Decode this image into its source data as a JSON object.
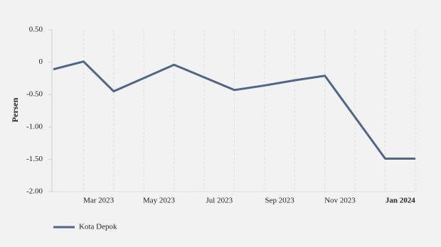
{
  "chart_data": {
    "type": "line",
    "y_label": "Persen",
    "categories": [
      null,
      "Mar 2023",
      null,
      "May 2023",
      null,
      "Jul 2023",
      null,
      "Sep 2023",
      null,
      "Nov 2023",
      null,
      "Jan 2024",
      null
    ],
    "series": [
      {
        "name": "Kota Depok",
        "color": "#4f6688",
        "values": [
          -0.11,
          0.01,
          -0.45,
          -0.245,
          -0.04,
          -0.235,
          -0.43,
          -0.36,
          -0.28,
          -0.21,
          -0.85,
          -1.49,
          -1.49
        ]
      }
    ],
    "ylim": [
      -2,
      0.5
    ],
    "yticks": [
      {
        "value": -2,
        "label": "-2.00"
      },
      {
        "value": -1.5,
        "label": "-1.50"
      },
      {
        "value": -1,
        "label": "-1.00"
      },
      {
        "value": -0.5,
        "label": "-0.50"
      },
      0,
      {
        "value": 0.5,
        "label": "0.50"
      }
    ],
    "grid": true
  }
}
